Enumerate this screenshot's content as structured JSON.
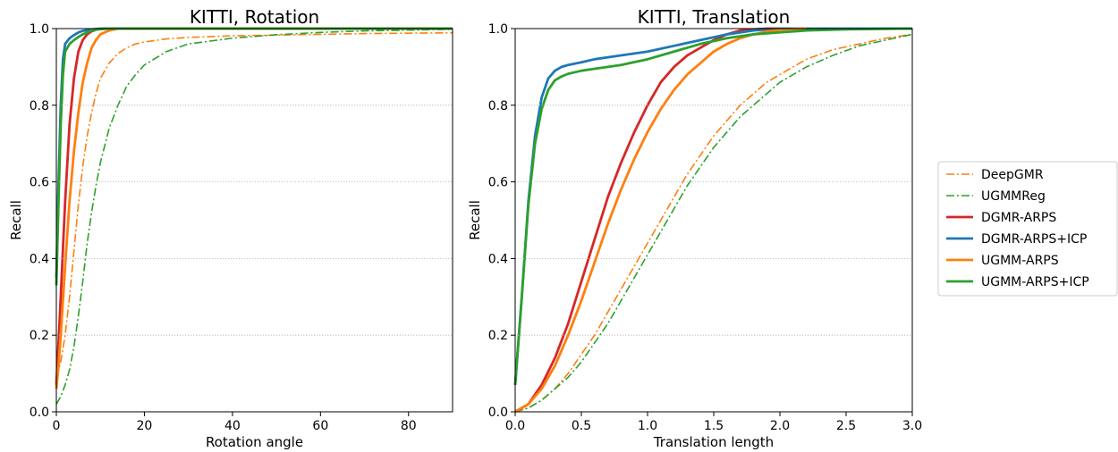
{
  "series_styles": [
    {
      "name": "DeepGMR",
      "color": "#ff7f0e",
      "dash": "dashdot",
      "width": 1.6
    },
    {
      "name": "UGMMReg",
      "color": "#2ca02c",
      "dash": "dashdot",
      "width": 1.6
    },
    {
      "name": "DGMR-ARPS",
      "color": "#d62728",
      "dash": "solid",
      "width": 2.8
    },
    {
      "name": "DGMR-ARPS+ICP",
      "color": "#1f77b4",
      "dash": "solid",
      "width": 2.8
    },
    {
      "name": "UGMM-ARPS",
      "color": "#ff7f0e",
      "dash": "solid",
      "width": 2.8
    },
    {
      "name": "UGMM-ARPS+ICP",
      "color": "#2ca02c",
      "dash": "solid",
      "width": 2.8
    }
  ],
  "legend": {
    "placement": "right",
    "items": [
      "DeepGMR",
      "UGMMReg",
      "DGMR-ARPS",
      "DGMR-ARPS+ICP",
      "UGMM-ARPS",
      "UGMM-ARPS+ICP"
    ]
  },
  "chart_data": [
    {
      "type": "line",
      "title": "KITTI, Rotation",
      "xlabel": "Rotation angle",
      "ylabel": "Recall",
      "xlim": [
        0,
        90
      ],
      "ylim": [
        0,
        1.0
      ],
      "xticks": [
        0,
        20,
        40,
        60,
        80
      ],
      "xtick_labels": [
        "0",
        "20",
        "40",
        "60",
        "80"
      ],
      "yticks": [
        0,
        0.2,
        0.4,
        0.6,
        0.8,
        1.0
      ],
      "ytick_labels": [
        "0.0",
        "0.2",
        "0.4",
        "0.6",
        "0.8",
        "1.0"
      ],
      "grid": "horizontal dotted",
      "series": [
        {
          "name": "DeepGMR",
          "x": [
            0,
            1,
            2,
            3,
            4,
            5,
            6,
            7,
            8,
            9,
            10,
            12,
            14,
            16,
            18,
            20,
            25,
            30,
            40,
            50,
            60,
            70,
            80,
            90
          ],
          "y": [
            0.09,
            0.13,
            0.2,
            0.3,
            0.42,
            0.54,
            0.64,
            0.72,
            0.78,
            0.83,
            0.87,
            0.91,
            0.935,
            0.95,
            0.96,
            0.965,
            0.973,
            0.977,
            0.981,
            0.983,
            0.985,
            0.987,
            0.988,
            0.989
          ]
        },
        {
          "name": "UGMMReg",
          "x": [
            0,
            1,
            2,
            3,
            4,
            5,
            6,
            7,
            8,
            9,
            10,
            12,
            14,
            16,
            18,
            20,
            25,
            30,
            40,
            50,
            60,
            70,
            80,
            90
          ],
          "y": [
            0.02,
            0.04,
            0.07,
            0.11,
            0.17,
            0.25,
            0.34,
            0.44,
            0.52,
            0.59,
            0.65,
            0.74,
            0.8,
            0.85,
            0.88,
            0.905,
            0.94,
            0.96,
            0.975,
            0.984,
            0.99,
            0.994,
            0.996,
            0.998
          ]
        },
        {
          "name": "DGMR-ARPS",
          "x": [
            0,
            0.5,
            1,
            2,
            3,
            4,
            5,
            6,
            7,
            8,
            9,
            10,
            12,
            90
          ],
          "y": [
            0.07,
            0.18,
            0.3,
            0.55,
            0.75,
            0.87,
            0.94,
            0.97,
            0.985,
            0.993,
            0.997,
            0.999,
            1.0,
            1.0
          ]
        },
        {
          "name": "DGMR-ARPS+ICP",
          "x": [
            0,
            0.5,
            1,
            1.5,
            2,
            3,
            4,
            5,
            6,
            8,
            10,
            90
          ],
          "y": [
            0.35,
            0.6,
            0.8,
            0.92,
            0.96,
            0.975,
            0.983,
            0.99,
            0.994,
            0.998,
            1.0,
            1.0
          ]
        },
        {
          "name": "UGMM-ARPS",
          "x": [
            0,
            0.5,
            1,
            2,
            3,
            4,
            5,
            6,
            7,
            8,
            9,
            10,
            12,
            14,
            90
          ],
          "y": [
            0.06,
            0.12,
            0.2,
            0.38,
            0.55,
            0.68,
            0.78,
            0.86,
            0.91,
            0.95,
            0.97,
            0.985,
            0.995,
            1.0,
            1.0
          ]
        },
        {
          "name": "UGMM-ARPS+ICP",
          "x": [
            0,
            0.5,
            1,
            1.5,
            2,
            3,
            4,
            5,
            6,
            7,
            8,
            10,
            12,
            90
          ],
          "y": [
            0.33,
            0.55,
            0.75,
            0.88,
            0.94,
            0.96,
            0.97,
            0.978,
            0.985,
            0.99,
            0.995,
            0.999,
            1.0,
            1.0
          ]
        }
      ]
    },
    {
      "type": "line",
      "title": "KITTI, Translation",
      "xlabel": "Translation length",
      "ylabel": "Recall",
      "xlim": [
        0,
        3.0
      ],
      "ylim": [
        0,
        1.0
      ],
      "xticks": [
        0,
        0.5,
        1.0,
        1.5,
        2.0,
        2.5,
        3.0
      ],
      "xtick_labels": [
        "0.0",
        "0.5",
        "1.0",
        "1.5",
        "2.0",
        "2.5",
        "3.0"
      ],
      "yticks": [
        0,
        0.2,
        0.4,
        0.6,
        0.8,
        1.0
      ],
      "ytick_labels": [
        "0.0",
        "0.2",
        "0.4",
        "0.6",
        "0.8",
        "1.0"
      ],
      "grid": "horizontal dotted",
      "series": [
        {
          "name": "DeepGMR",
          "x": [
            0,
            0.1,
            0.2,
            0.3,
            0.4,
            0.5,
            0.6,
            0.7,
            0.8,
            0.9,
            1.0,
            1.1,
            1.2,
            1.3,
            1.4,
            1.5,
            1.6,
            1.7,
            1.8,
            1.9,
            2.0,
            2.2,
            2.4,
            2.6,
            2.8,
            3.0
          ],
          "y": [
            0,
            0.01,
            0.03,
            0.06,
            0.1,
            0.15,
            0.2,
            0.26,
            0.32,
            0.38,
            0.44,
            0.5,
            0.56,
            0.62,
            0.67,
            0.72,
            0.76,
            0.8,
            0.83,
            0.86,
            0.88,
            0.92,
            0.945,
            0.96,
            0.975,
            0.985
          ]
        },
        {
          "name": "UGMMReg",
          "x": [
            0,
            0.1,
            0.2,
            0.3,
            0.4,
            0.5,
            0.6,
            0.7,
            0.8,
            0.9,
            1.0,
            1.1,
            1.2,
            1.3,
            1.4,
            1.5,
            1.6,
            1.7,
            1.8,
            1.9,
            2.0,
            2.2,
            2.4,
            2.6,
            2.8,
            3.0
          ],
          "y": [
            0,
            0.01,
            0.03,
            0.06,
            0.09,
            0.13,
            0.18,
            0.23,
            0.29,
            0.35,
            0.41,
            0.47,
            0.53,
            0.59,
            0.64,
            0.69,
            0.73,
            0.77,
            0.8,
            0.83,
            0.86,
            0.9,
            0.93,
            0.955,
            0.97,
            0.985
          ]
        },
        {
          "name": "DGMR-ARPS",
          "x": [
            0,
            0.1,
            0.2,
            0.3,
            0.4,
            0.5,
            0.6,
            0.7,
            0.8,
            0.9,
            1.0,
            1.1,
            1.2,
            1.3,
            1.4,
            1.5,
            1.6,
            1.7,
            1.8,
            1.9,
            2.0
          ],
          "y": [
            0,
            0.02,
            0.07,
            0.14,
            0.23,
            0.34,
            0.45,
            0.56,
            0.65,
            0.73,
            0.8,
            0.86,
            0.9,
            0.93,
            0.95,
            0.97,
            0.985,
            0.995,
            0.998,
            1.0,
            1.0
          ]
        },
        {
          "name": "DGMR-ARPS+ICP",
          "x": [
            0,
            0.05,
            0.1,
            0.15,
            0.2,
            0.25,
            0.3,
            0.35,
            0.4,
            0.5,
            0.6,
            0.8,
            1.0,
            1.2,
            1.4,
            1.6,
            1.8,
            2.0,
            2.2,
            2.5,
            3.0
          ],
          "y": [
            0.07,
            0.3,
            0.55,
            0.72,
            0.82,
            0.87,
            0.89,
            0.9,
            0.905,
            0.912,
            0.92,
            0.93,
            0.94,
            0.955,
            0.97,
            0.985,
            0.995,
            1.0,
            1.0,
            1.0,
            1.0
          ]
        },
        {
          "name": "UGMM-ARPS",
          "x": [
            0,
            0.1,
            0.2,
            0.3,
            0.4,
            0.5,
            0.6,
            0.7,
            0.8,
            0.9,
            1.0,
            1.1,
            1.2,
            1.3,
            1.4,
            1.5,
            1.6,
            1.7,
            1.8,
            1.9,
            2.0,
            2.2
          ],
          "y": [
            0,
            0.02,
            0.06,
            0.12,
            0.2,
            0.29,
            0.39,
            0.49,
            0.58,
            0.66,
            0.73,
            0.79,
            0.84,
            0.88,
            0.91,
            0.94,
            0.96,
            0.975,
            0.985,
            0.992,
            0.997,
            1.0
          ]
        },
        {
          "name": "UGMM-ARPS+ICP",
          "x": [
            0,
            0.05,
            0.1,
            0.15,
            0.2,
            0.25,
            0.3,
            0.35,
            0.4,
            0.5,
            0.6,
            0.8,
            1.0,
            1.2,
            1.4,
            1.6,
            1.8,
            2.0,
            2.2,
            2.5,
            3.0
          ],
          "y": [
            0.07,
            0.3,
            0.54,
            0.7,
            0.79,
            0.84,
            0.865,
            0.875,
            0.882,
            0.89,
            0.895,
            0.905,
            0.92,
            0.94,
            0.96,
            0.975,
            0.985,
            0.99,
            0.995,
            0.998,
            1.0
          ]
        }
      ]
    }
  ]
}
